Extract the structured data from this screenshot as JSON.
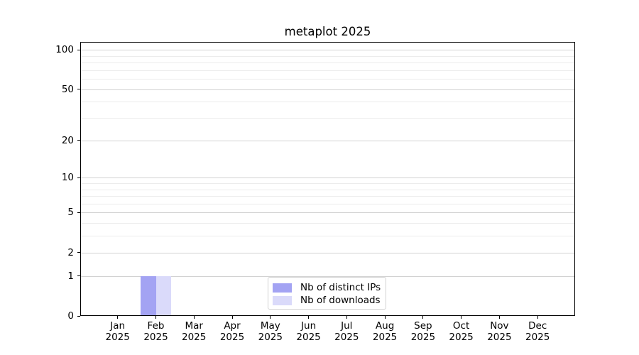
{
  "chart_data": {
    "type": "bar",
    "title": "metaplot 2025",
    "x_axis": {
      "months": [
        "Jan",
        "Feb",
        "Mar",
        "Apr",
        "May",
        "Jun",
        "Jul",
        "Aug",
        "Sep",
        "Oct",
        "Nov",
        "Dec"
      ],
      "year": "2025"
    },
    "y_axis": {
      "scale": "log1p",
      "major_ticks": [
        0,
        1,
        2,
        5,
        10,
        20,
        50,
        100
      ],
      "minor_ticks": [
        3,
        4,
        6,
        7,
        8,
        9,
        30,
        40,
        60,
        70,
        80,
        90
      ],
      "range": [
        0,
        115
      ]
    },
    "series": [
      {
        "name": "Nb of distinct IPs",
        "color": "#a3a3f3",
        "values": [
          0,
          1,
          0,
          0,
          0,
          0,
          0,
          0,
          0,
          0,
          0,
          0
        ]
      },
      {
        "name": "Nb of downloads",
        "color": "#dadafa",
        "values": [
          0,
          1,
          0,
          0,
          0,
          0,
          0,
          0,
          0,
          0,
          0,
          0
        ]
      }
    ],
    "grid": {
      "orientation": "horizontal",
      "major_color": "#d2d2d2",
      "minor_color": "#ececec"
    },
    "legend": {
      "position": "lower-center",
      "entries": [
        "Nb of distinct IPs",
        "Nb of downloads"
      ]
    },
    "background": "#ffffff",
    "spine_color": "#000000"
  }
}
